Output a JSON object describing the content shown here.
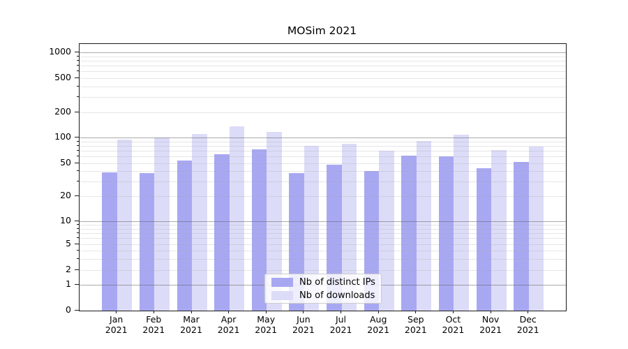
{
  "title": "MOSim 2021",
  "colors": {
    "series_distinct_ips": "#a8a8f2",
    "series_downloads": "#dcdcf8",
    "axis_spine": "#1a1a1a",
    "text": "#000000"
  },
  "legend": {
    "items": [
      {
        "label": "Nb of distinct IPs"
      },
      {
        "label": "Nb of downloads"
      }
    ]
  },
  "chart_data": {
    "type": "bar",
    "title": "MOSim 2021",
    "xlabel": "",
    "ylabel": "",
    "scale": "symlog",
    "grid": true,
    "legend_position": "lower center",
    "year": "2021",
    "categories": [
      "Jan",
      "Feb",
      "Mar",
      "Apr",
      "May",
      "Jun",
      "Jul",
      "Aug",
      "Sep",
      "Oct",
      "Nov",
      "Dec"
    ],
    "x_ticklabels": [
      "Jan\n2021",
      "Feb\n2021",
      "Mar\n2021",
      "Apr\n2021",
      "May\n2021",
      "Jun\n2021",
      "Jul\n2021",
      "Aug\n2021",
      "Sep\n2021",
      "Oct\n2021",
      "Nov\n2021",
      "Dec\n2021"
    ],
    "y_ticks": [
      0,
      1,
      2,
      5,
      10,
      20,
      50,
      100,
      200,
      500,
      1000
    ],
    "ylim": [
      0,
      1260
    ],
    "series": [
      {
        "name": "Nb of distinct IPs",
        "color": "#a8a8f2",
        "values": [
          39,
          38,
          54,
          64,
          73,
          38,
          48,
          40,
          61,
          60,
          44,
          52
        ]
      },
      {
        "name": "Nb of downloads",
        "color": "#dcdcf8",
        "values": [
          95,
          100,
          111,
          135,
          116,
          80,
          84,
          70,
          91,
          108,
          72,
          78
        ]
      }
    ]
  }
}
